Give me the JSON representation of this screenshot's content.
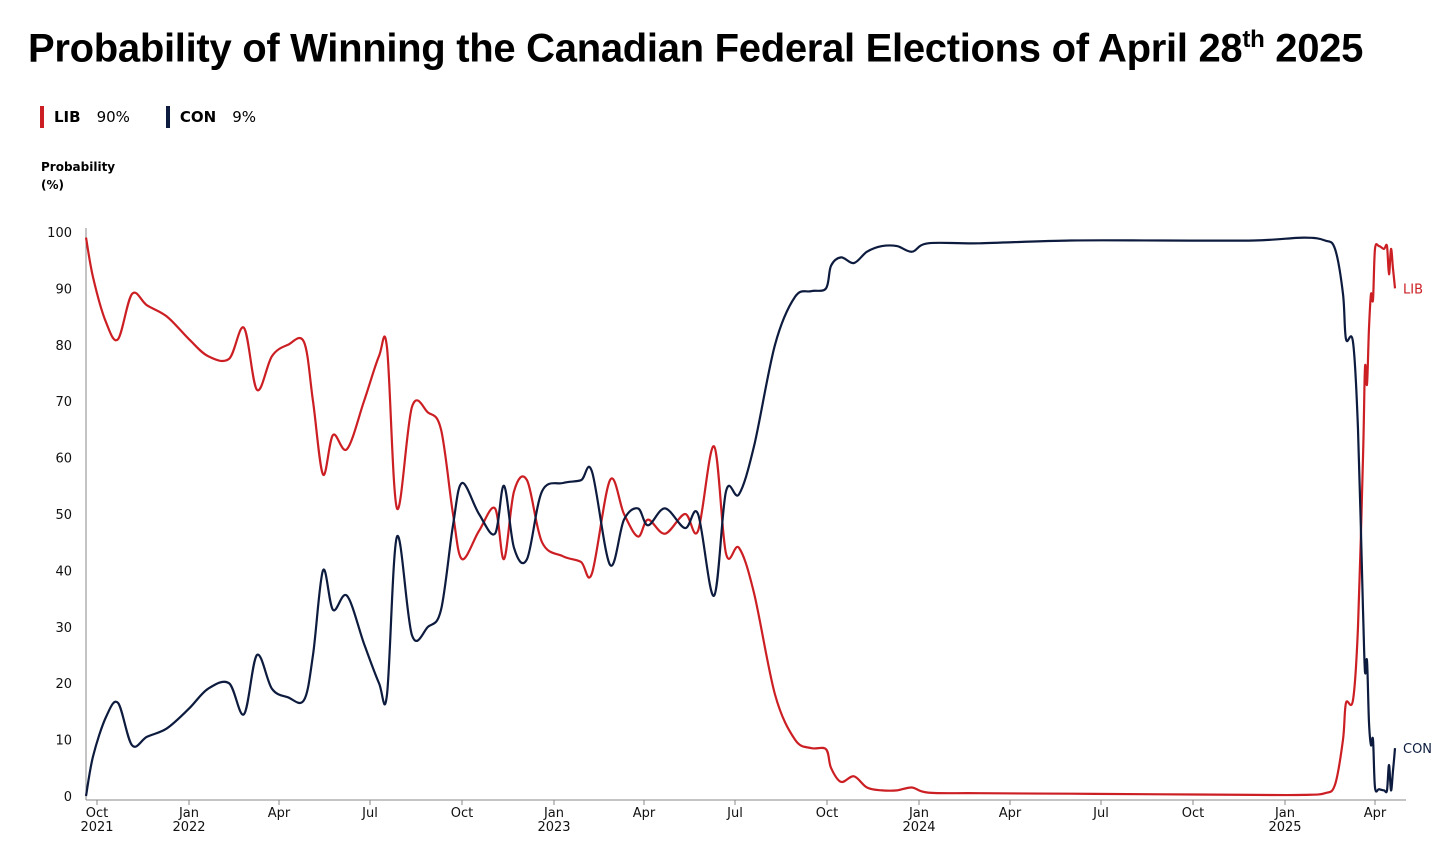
{
  "chart_data": {
    "type": "line",
    "title_main": "Probability of Winning the Canadian Federal Elections of  April 28",
    "title_sup": "th",
    "title_end": " 2025",
    "ylabel_line1": "Probability",
    "ylabel_line2": "(%)",
    "ylim": [
      0,
      100
    ],
    "yticks": [
      "0",
      "10",
      "20",
      "30",
      "40",
      "50",
      "60",
      "70",
      "80",
      "90",
      "100"
    ],
    "xlim": [
      "2021-09-20",
      "2025-04-28"
    ],
    "xticks": [
      {
        "date": "2021-10-01",
        "line1": "Oct",
        "line2": "2021"
      },
      {
        "date": "2022-01-01",
        "line1": "Jan",
        "line2": "2022"
      },
      {
        "date": "2022-04-01",
        "line1": "Apr",
        "line2": ""
      },
      {
        "date": "2022-07-01",
        "line1": "Jul",
        "line2": ""
      },
      {
        "date": "2022-10-01",
        "line1": "Oct",
        "line2": ""
      },
      {
        "date": "2023-01-01",
        "line1": "Jan",
        "line2": "2023"
      },
      {
        "date": "2023-04-01",
        "line1": "Apr",
        "line2": ""
      },
      {
        "date": "2023-07-01",
        "line1": "Jul",
        "line2": ""
      },
      {
        "date": "2023-10-01",
        "line1": "Oct",
        "line2": ""
      },
      {
        "date": "2024-01-01",
        "line1": "Jan",
        "line2": "2024"
      },
      {
        "date": "2024-04-01",
        "line1": "Apr",
        "line2": ""
      },
      {
        "date": "2024-07-01",
        "line1": "Jul",
        "line2": ""
      },
      {
        "date": "2024-10-01",
        "line1": "Oct",
        "line2": ""
      },
      {
        "date": "2025-01-01",
        "line1": "Jan",
        "line2": "2025"
      },
      {
        "date": "2025-04-01",
        "line1": "Apr",
        "line2": ""
      }
    ],
    "legend": [
      {
        "name": "LIB",
        "value": "90%",
        "color": "#cc1f24"
      },
      {
        "name": "CON",
        "value": "9%",
        "color": "#0d1b3e"
      }
    ],
    "series": [
      {
        "name": "LIB",
        "color": "#cc1f24",
        "end_label": "LIB",
        "points": [
          [
            "2021-09-20",
            99
          ],
          [
            "2021-09-27",
            92
          ],
          [
            "2021-10-10",
            84
          ],
          [
            "2021-10-22",
            81
          ],
          [
            "2021-11-05",
            89
          ],
          [
            "2021-11-20",
            87
          ],
          [
            "2021-12-10",
            85
          ],
          [
            "2022-01-01",
            81
          ],
          [
            "2022-01-20",
            78
          ],
          [
            "2022-02-10",
            77.5
          ],
          [
            "2022-02-25",
            83
          ],
          [
            "2022-03-10",
            72
          ],
          [
            "2022-03-25",
            78
          ],
          [
            "2022-04-10",
            80
          ],
          [
            "2022-04-26",
            80.5
          ],
          [
            "2022-05-05",
            70
          ],
          [
            "2022-05-15",
            57
          ],
          [
            "2022-05-25",
            64
          ],
          [
            "2022-06-08",
            61.5
          ],
          [
            "2022-06-25",
            70
          ],
          [
            "2022-07-10",
            78
          ],
          [
            "2022-07-18",
            79.5
          ],
          [
            "2022-07-28",
            51
          ],
          [
            "2022-08-12",
            69
          ],
          [
            "2022-08-28",
            68
          ],
          [
            "2022-09-10",
            65
          ],
          [
            "2022-09-22",
            50
          ],
          [
            "2022-10-01",
            42
          ],
          [
            "2022-10-18",
            47
          ],
          [
            "2022-11-03",
            51
          ],
          [
            "2022-11-12",
            42
          ],
          [
            "2022-11-22",
            54
          ],
          [
            "2022-12-05",
            56
          ],
          [
            "2022-12-20",
            45
          ],
          [
            "2023-01-10",
            42.5
          ],
          [
            "2023-01-28",
            41.5
          ],
          [
            "2023-02-08",
            39.5
          ],
          [
            "2023-02-26",
            56
          ],
          [
            "2023-03-12",
            50
          ],
          [
            "2023-03-26",
            46
          ],
          [
            "2023-04-05",
            49
          ],
          [
            "2023-04-22",
            46.5
          ],
          [
            "2023-05-12",
            50
          ],
          [
            "2023-05-25",
            47
          ],
          [
            "2023-06-10",
            62
          ],
          [
            "2023-06-22",
            43
          ],
          [
            "2023-07-05",
            44
          ],
          [
            "2023-07-20",
            36
          ],
          [
            "2023-08-10",
            18
          ],
          [
            "2023-08-30",
            10
          ],
          [
            "2023-09-15",
            8.5
          ],
          [
            "2023-09-30",
            8.3
          ],
          [
            "2023-10-05",
            5
          ],
          [
            "2023-10-15",
            2.5
          ],
          [
            "2023-10-28",
            3.5
          ],
          [
            "2023-11-10",
            1.5
          ],
          [
            "2023-11-25",
            1
          ],
          [
            "2023-12-10",
            1
          ],
          [
            "2023-12-25",
            1.5
          ],
          [
            "2024-01-10",
            0.6
          ],
          [
            "2024-03-01",
            0.5
          ],
          [
            "2024-06-01",
            0.4
          ],
          [
            "2024-09-01",
            0.3
          ],
          [
            "2024-12-01",
            0.2
          ],
          [
            "2025-01-20",
            0.2
          ],
          [
            "2025-02-10",
            0.5
          ],
          [
            "2025-02-20",
            2
          ],
          [
            "2025-02-28",
            10
          ],
          [
            "2025-03-03",
            16.5
          ],
          [
            "2025-03-10",
            17
          ],
          [
            "2025-03-15",
            30
          ],
          [
            "2025-03-20",
            60
          ],
          [
            "2025-03-22",
            76
          ],
          [
            "2025-03-24",
            73
          ],
          [
            "2025-03-26",
            83
          ],
          [
            "2025-03-28",
            89
          ],
          [
            "2025-03-30",
            88
          ],
          [
            "2025-04-01",
            97
          ],
          [
            "2025-04-05",
            97.5
          ],
          [
            "2025-04-10",
            97
          ],
          [
            "2025-04-13",
            97.5
          ],
          [
            "2025-04-15",
            92.5
          ],
          [
            "2025-04-17",
            97
          ],
          [
            "2025-04-19",
            93.5
          ],
          [
            "2025-04-21",
            90
          ]
        ]
      },
      {
        "name": "CON",
        "color": "#0d1b3e",
        "end_label": "CON",
        "points": [
          [
            "2021-09-20",
            0
          ],
          [
            "2021-09-27",
            7
          ],
          [
            "2021-10-10",
            14
          ],
          [
            "2021-10-22",
            16.5
          ],
          [
            "2021-11-05",
            9
          ],
          [
            "2021-11-20",
            10.5
          ],
          [
            "2021-12-10",
            12
          ],
          [
            "2022-01-01",
            15.5
          ],
          [
            "2022-01-20",
            19
          ],
          [
            "2022-02-10",
            20
          ],
          [
            "2022-02-25",
            14.5
          ],
          [
            "2022-03-10",
            25
          ],
          [
            "2022-03-25",
            19
          ],
          [
            "2022-04-10",
            17.5
          ],
          [
            "2022-04-26",
            17
          ],
          [
            "2022-05-05",
            25
          ],
          [
            "2022-05-15",
            40
          ],
          [
            "2022-05-25",
            33
          ],
          [
            "2022-06-08",
            35.5
          ],
          [
            "2022-06-25",
            27
          ],
          [
            "2022-07-10",
            20
          ],
          [
            "2022-07-18",
            18
          ],
          [
            "2022-07-28",
            46
          ],
          [
            "2022-08-12",
            28.5
          ],
          [
            "2022-08-28",
            30
          ],
          [
            "2022-09-10",
            33
          ],
          [
            "2022-09-22",
            48
          ],
          [
            "2022-10-01",
            55.5
          ],
          [
            "2022-10-18",
            50
          ],
          [
            "2022-11-03",
            46.5
          ],
          [
            "2022-11-12",
            55
          ],
          [
            "2022-11-22",
            44
          ],
          [
            "2022-12-05",
            42
          ],
          [
            "2022-12-20",
            54
          ],
          [
            "2023-01-10",
            55.5
          ],
          [
            "2023-01-28",
            56
          ],
          [
            "2023-02-08",
            57.5
          ],
          [
            "2023-02-26",
            41
          ],
          [
            "2023-03-12",
            49
          ],
          [
            "2023-03-26",
            51
          ],
          [
            "2023-04-05",
            48
          ],
          [
            "2023-04-22",
            51
          ],
          [
            "2023-05-12",
            47.5
          ],
          [
            "2023-05-25",
            50
          ],
          [
            "2023-06-10",
            35.5
          ],
          [
            "2023-06-22",
            54
          ],
          [
            "2023-07-05",
            53.5
          ],
          [
            "2023-07-20",
            62
          ],
          [
            "2023-08-10",
            80
          ],
          [
            "2023-08-30",
            88.5
          ],
          [
            "2023-09-15",
            89.5
          ],
          [
            "2023-09-30",
            90
          ],
          [
            "2023-10-05",
            94
          ],
          [
            "2023-10-15",
            95.5
          ],
          [
            "2023-10-28",
            94.5
          ],
          [
            "2023-11-10",
            96.5
          ],
          [
            "2023-11-25",
            97.5
          ],
          [
            "2023-12-10",
            97.5
          ],
          [
            "2023-12-25",
            96.5
          ],
          [
            "2024-01-10",
            98
          ],
          [
            "2024-03-01",
            98
          ],
          [
            "2024-06-01",
            98.5
          ],
          [
            "2024-09-01",
            98.5
          ],
          [
            "2024-12-01",
            98.5
          ],
          [
            "2025-01-20",
            99
          ],
          [
            "2025-02-10",
            98.5
          ],
          [
            "2025-02-20",
            97
          ],
          [
            "2025-02-28",
            89
          ],
          [
            "2025-03-03",
            81
          ],
          [
            "2025-03-10",
            80.5
          ],
          [
            "2025-03-15",
            65
          ],
          [
            "2025-03-20",
            33
          ],
          [
            "2025-03-22",
            22
          ],
          [
            "2025-03-24",
            24
          ],
          [
            "2025-03-26",
            13
          ],
          [
            "2025-03-28",
            9
          ],
          [
            "2025-03-30",
            10
          ],
          [
            "2025-04-01",
            1.5
          ],
          [
            "2025-04-05",
            1.2
          ],
          [
            "2025-04-10",
            1
          ],
          [
            "2025-04-13",
            1
          ],
          [
            "2025-04-15",
            5.5
          ],
          [
            "2025-04-17",
            1
          ],
          [
            "2025-04-19",
            4.5
          ],
          [
            "2025-04-21",
            8.5
          ]
        ]
      }
    ]
  }
}
